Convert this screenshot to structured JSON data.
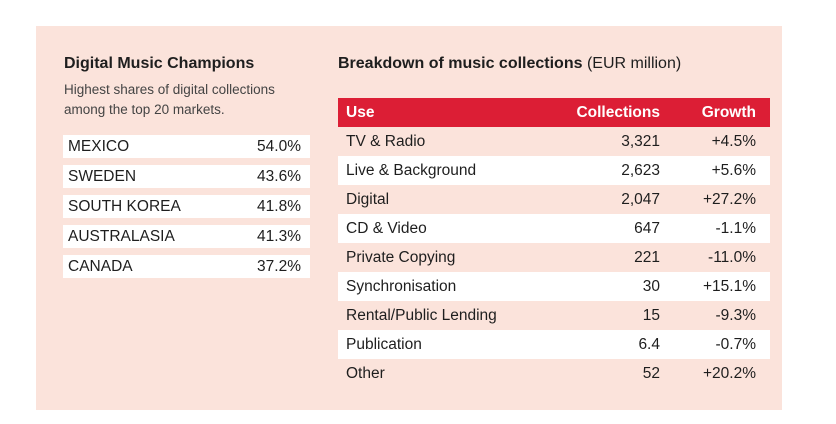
{
  "left": {
    "title": "Digital Music Champions",
    "subtitle": "Highest shares of digital collections among the top 20 markets.",
    "rows": [
      {
        "market": "MEXICO",
        "share": "54.0%"
      },
      {
        "market": "SWEDEN",
        "share": "43.6%"
      },
      {
        "market": "SOUTH KOREA",
        "share": "41.8%"
      },
      {
        "market": "AUSTRALASIA",
        "share": "41.3%"
      },
      {
        "market": "CANADA",
        "share": "37.2%"
      }
    ]
  },
  "right": {
    "title": "Breakdown of music collections",
    "unit": "(EUR million)",
    "headers": [
      "Use",
      "Collections",
      "Growth"
    ],
    "rows": [
      [
        "TV & Radio",
        "3,321",
        "+4.5%"
      ],
      [
        "Live & Background",
        "2,623",
        "+5.6%"
      ],
      [
        "Digital",
        "2,047",
        "+27.2%"
      ],
      [
        "CD & Video",
        "647",
        "-1.1%"
      ],
      [
        "Private Copying",
        "221",
        "-11.0%"
      ],
      [
        "Synchronisation",
        "30",
        "+15.1%"
      ],
      [
        "Rental/Public Lending",
        "15",
        "-9.3%"
      ],
      [
        "Publication",
        "6.4",
        "-0.7%"
      ],
      [
        "Other",
        "52",
        "+20.2%"
      ]
    ]
  },
  "colors": {
    "panel": "#fbe3db",
    "header": "#dc1e35"
  }
}
